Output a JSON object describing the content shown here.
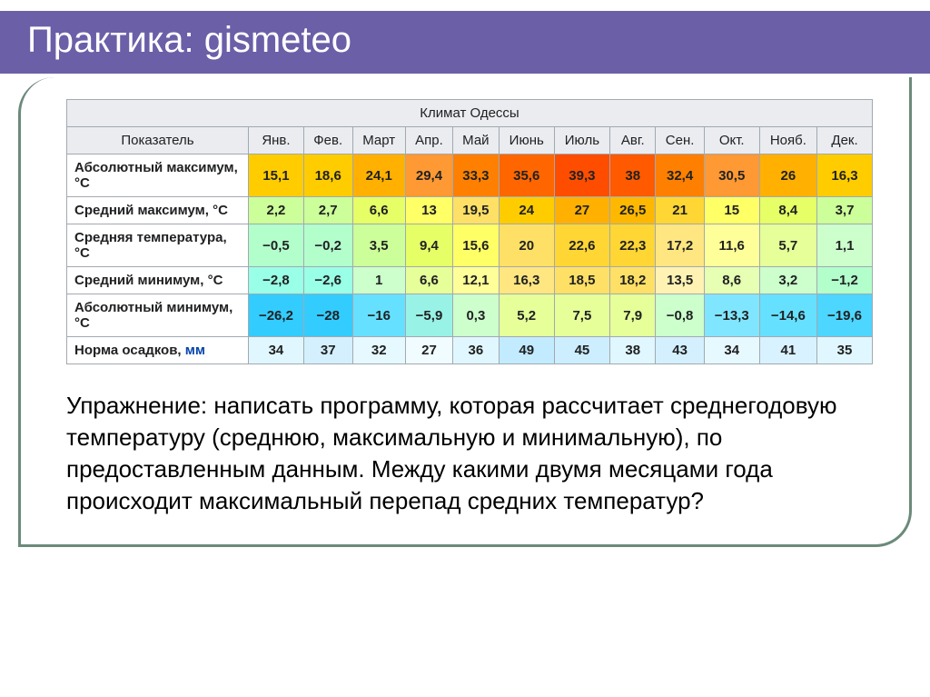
{
  "slide": {
    "title": "Практика: gismeteo",
    "exercise": "Упражнение: написать программу, которая рассчитает среднегодовую температуру (среднюю, максимальную и минимальную), по предоставленным данным. Между какими двумя месяцами года происходит максимальный перепад средних температур?"
  },
  "table": {
    "caption": "Климат Одессы",
    "corner_label": "Показатель",
    "months": [
      "Янв.",
      "Фев.",
      "Март",
      "Апр.",
      "Май",
      "Июнь",
      "Июль",
      "Авг.",
      "Сен.",
      "Окт.",
      "Нояб.",
      "Дек."
    ],
    "rows": [
      {
        "label": "Абсолютный максимум, °C",
        "values": [
          "15,1",
          "18,6",
          "24,1",
          "29,4",
          "33,3",
          "35,6",
          "39,3",
          "38",
          "32,4",
          "30,5",
          "26",
          "16,3"
        ],
        "colors": [
          "#ffcc00",
          "#ffcc00",
          "#ffb000",
          "#ff9933",
          "#ff8000",
          "#ff6600",
          "#ff4d00",
          "#ff5a00",
          "#ff8000",
          "#ff9933",
          "#ffb000",
          "#ffcc00"
        ]
      },
      {
        "label": "Средний максимум, °C",
        "values": [
          "2,2",
          "2,7",
          "6,6",
          "13",
          "19,5",
          "24",
          "27",
          "26,5",
          "21",
          "15",
          "8,4",
          "3,7"
        ],
        "colors": [
          "#ccff99",
          "#ccff99",
          "#e6ff66",
          "#ffff66",
          "#ffe066",
          "#ffcc00",
          "#ffb000",
          "#ffb800",
          "#ffd633",
          "#ffff66",
          "#e6ff66",
          "#ccff99"
        ]
      },
      {
        "label": "Средняя температура, °C",
        "values": [
          "−0,5",
          "−0,2",
          "3,5",
          "9,4",
          "15,6",
          "20",
          "22,6",
          "22,3",
          "17,2",
          "11,6",
          "5,7",
          "1,1"
        ],
        "colors": [
          "#b3ffcc",
          "#b3ffcc",
          "#ccff99",
          "#e6ff66",
          "#ffff66",
          "#ffe066",
          "#ffd633",
          "#ffd633",
          "#ffe680",
          "#ffff99",
          "#e6ff99",
          "#ccffcc"
        ]
      },
      {
        "label": "Средний минимум, °C",
        "values": [
          "−2,8",
          "−2,6",
          "1",
          "6,6",
          "12,1",
          "16,3",
          "18,5",
          "18,2",
          "13,5",
          "8,6",
          "3,2",
          "−1,2"
        ],
        "colors": [
          "#99ffe6",
          "#99ffe6",
          "#ccffcc",
          "#e6ff99",
          "#ffff99",
          "#ffe680",
          "#ffe066",
          "#ffe066",
          "#fff2b3",
          "#e6ffb3",
          "#ccffcc",
          "#b3ffcc"
        ]
      },
      {
        "label": "Абсолютный минимум, °C",
        "values": [
          "−26,2",
          "−28",
          "−16",
          "−5,9",
          "0,3",
          "5,2",
          "7,5",
          "7,9",
          "−0,8",
          "−13,3",
          "−14,6",
          "−19,6"
        ],
        "colors": [
          "#33ccff",
          "#33ccff",
          "#66e0ff",
          "#99f2e6",
          "#ccffcc",
          "#e6ff99",
          "#e6ff99",
          "#e6ff99",
          "#ccffcc",
          "#80e6ff",
          "#66e0ff",
          "#4dd6ff"
        ]
      },
      {
        "label_html": "Норма осадков, <span style=\"color:#0645ad\">мм</span>",
        "label": "Норма осадков, мм",
        "values": [
          "34",
          "37",
          "32",
          "27",
          "36",
          "49",
          "45",
          "38",
          "43",
          "34",
          "41",
          "35"
        ],
        "colors": [
          "#e0f7ff",
          "#d4f0ff",
          "#e6f9ff",
          "#f0fcff",
          "#e0f7ff",
          "#c2ebff",
          "#cceeff",
          "#e0f7ff",
          "#d4f0ff",
          "#e6f9ff",
          "#d9f2ff",
          "#e0f7ff"
        ]
      }
    ]
  },
  "style": {
    "header_bg": "#6b5fa8",
    "border_color": "#6b8a7a",
    "th_bg": "#eaecf0",
    "cell_border": "#a2a9b1"
  }
}
